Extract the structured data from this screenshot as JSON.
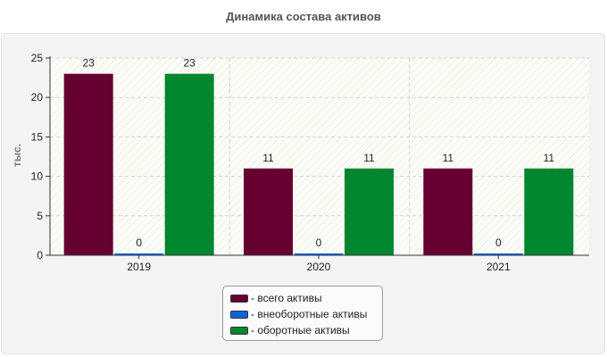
{
  "title": "Динамика состава активов",
  "chart_data": {
    "type": "bar",
    "title": "Динамика состава активов",
    "ylabel": "тыс.",
    "xlabel": "",
    "categories": [
      "2019",
      "2020",
      "2021"
    ],
    "ylim": [
      0,
      25
    ],
    "yticks": [
      0,
      5,
      10,
      15,
      20,
      25
    ],
    "grid": true,
    "legend_position": "bottom",
    "series": [
      {
        "name": "- всего активы",
        "color": "#650030",
        "values": [
          23,
          11,
          11
        ]
      },
      {
        "name": "- внеоборотные активы",
        "color": "#0a64e0",
        "values": [
          0,
          0,
          0
        ]
      },
      {
        "name": "- оборотные активы",
        "color": "#00862e",
        "values": [
          23,
          11,
          11
        ]
      }
    ],
    "data_labels": true
  }
}
